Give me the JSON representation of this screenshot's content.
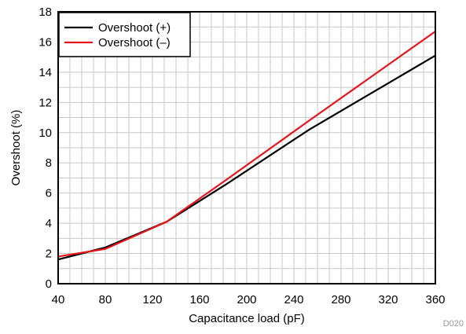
{
  "chart_data": {
    "type": "line",
    "title": "",
    "xlabel": "Capacitance load (pF)",
    "ylabel": "Overshoot (%)",
    "xlim": [
      40,
      360
    ],
    "ylim": [
      0,
      18
    ],
    "x_ticks": [
      "40",
      "80",
      "120",
      "160",
      "200",
      "240",
      "280",
      "320",
      "360"
    ],
    "y_ticks": [
      "0",
      "2",
      "4",
      "6",
      "8",
      "10",
      "12",
      "14",
      "16",
      "18"
    ],
    "grid": true,
    "legend_position": "top-left",
    "series": [
      {
        "name": "Overshoot (+)",
        "color": "#000000",
        "x": [
          40,
          80,
          132,
          183,
          253,
          360
        ],
        "y": [
          1.6,
          2.4,
          4.1,
          6.6,
          10.2,
          15.1
        ]
      },
      {
        "name": "Overshoot (–)",
        "color": "#e8141c",
        "x": [
          40,
          80,
          132,
          183,
          253,
          360
        ],
        "y": [
          1.8,
          2.3,
          4.1,
          6.9,
          10.8,
          16.7
        ]
      }
    ],
    "figure_code": "D020"
  }
}
